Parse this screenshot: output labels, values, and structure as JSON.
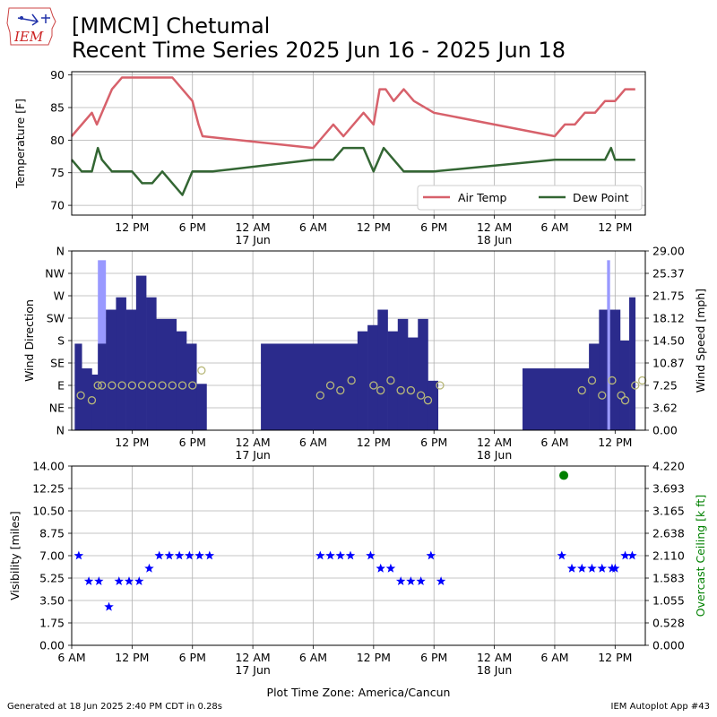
{
  "header": {
    "logo_text": "IEM",
    "title_line1": "[MMCM] Chetumal",
    "title_line2": "Recent Time Series 2025 Jun 16 - 2025 Jun 18"
  },
  "footer": {
    "left": "Generated at 18 Jun 2025 2:40 PM CDT in 0.28s",
    "right": "IEM Autoplot App #43"
  },
  "colors": {
    "air_temp": "#d7616b",
    "dew_point": "#336633",
    "wind_bar": "#2b2b8c",
    "gust_bar": "#9999ff",
    "wind_dir_marker": "#b8b87a",
    "visibility": "#0000ff",
    "ceiling": "#008000",
    "grid": "#b0b0b0"
  },
  "chart_data": [
    {
      "type": "line",
      "name": "temperature",
      "ylabel": "Temperature [F]",
      "ylim": [
        68.5,
        90.5
      ],
      "yticks": [
        70,
        75,
        80,
        85,
        90
      ],
      "xticks": [
        {
          "h": 12,
          "label": "12 PM"
        },
        {
          "h": 18,
          "label": "6 PM"
        },
        {
          "h": 24,
          "label": "12 AM",
          "sub": "17 Jun"
        },
        {
          "h": 30,
          "label": "6 AM"
        },
        {
          "h": 36,
          "label": "12 PM"
        },
        {
          "h": 42,
          "label": "6 PM"
        },
        {
          "h": 48,
          "label": "12 AM",
          "sub": "18 Jun"
        },
        {
          "h": 54,
          "label": "6 AM"
        },
        {
          "h": 60,
          "label": "12 PM"
        }
      ],
      "legend": {
        "position": "lower-right",
        "entries": [
          "Air Temp",
          "Dew Point"
        ]
      },
      "series": [
        {
          "name": "Air Temp",
          "x": [
            6,
            8,
            8.5,
            9,
            10,
            11,
            14,
            16,
            18,
            18.6,
            19,
            30,
            31,
            32,
            33,
            35,
            36,
            36.6,
            37.2,
            38,
            39,
            40,
            42,
            54,
            55,
            56,
            57,
            58,
            59,
            59.6,
            60,
            61,
            62
          ],
          "y": [
            80.6,
            84.2,
            82.4,
            84.2,
            87.8,
            89.6,
            89.6,
            89.6,
            86,
            82.4,
            80.6,
            78.8,
            80.6,
            82.4,
            80.6,
            84.2,
            82.4,
            87.8,
            87.8,
            86,
            87.8,
            86,
            84.2,
            80.6,
            82.4,
            82.4,
            84.2,
            84.2,
            86,
            86,
            86,
            87.8,
            87.8
          ]
        },
        {
          "name": "Dew Point",
          "x": [
            6,
            7,
            8,
            8.6,
            9,
            10,
            11,
            12,
            13,
            14,
            15,
            16,
            17,
            18,
            19,
            20,
            30,
            32,
            33,
            35,
            36,
            37,
            38,
            39,
            40,
            42,
            54,
            55,
            56,
            57,
            58,
            59,
            59.6,
            60,
            61,
            62
          ],
          "y": [
            77,
            75.2,
            75.2,
            78.8,
            77,
            75.2,
            75.2,
            75.2,
            73.4,
            73.4,
            75.2,
            73.4,
            71.6,
            75.2,
            75.2,
            75.2,
            77,
            77,
            78.8,
            78.8,
            75.2,
            78.8,
            77,
            75.2,
            75.2,
            75.2,
            77,
            77,
            77,
            77,
            77,
            77,
            78.8,
            77,
            77,
            77
          ]
        }
      ]
    },
    {
      "type": "bar",
      "name": "wind",
      "ylabel": "Wind Direction",
      "y2label": "Wind Speed [mph]",
      "ylim_dir": [
        0,
        360
      ],
      "dir_ticks": [
        "N",
        "NE",
        "E",
        "SE",
        "S",
        "SW",
        "W",
        "NW",
        "N"
      ],
      "ylim_speed": [
        0,
        29
      ],
      "speed_ticks": [
        "0.00",
        "3.62",
        "7.25",
        "10.87",
        "14.50",
        "18.12",
        "21.75",
        "25.37",
        "29.00"
      ],
      "xticks": [
        {
          "h": 12,
          "label": "12 PM"
        },
        {
          "h": 18,
          "label": "6 PM"
        },
        {
          "h": 24,
          "label": "12 AM",
          "sub": "17 Jun"
        },
        {
          "h": 30,
          "label": "6 AM"
        },
        {
          "h": 36,
          "label": "12 PM"
        },
        {
          "h": 42,
          "label": "6 PM"
        },
        {
          "h": 48,
          "label": "12 AM",
          "sub": "18 Jun"
        },
        {
          "h": 54,
          "label": "6 AM"
        },
        {
          "h": 60,
          "label": "12 PM"
        }
      ],
      "speed": [
        {
          "x0": 6.3,
          "x1": 7.0,
          "v": 14.0
        },
        {
          "x0": 7.0,
          "x1": 8.0,
          "v": 10.0
        },
        {
          "x0": 8.0,
          "x1": 8.6,
          "v": 9.0
        },
        {
          "x0": 8.6,
          "x1": 9.4,
          "v": 14.0
        },
        {
          "x0": 9.4,
          "x1": 10.4,
          "v": 19.5
        },
        {
          "x0": 10.4,
          "x1": 11.4,
          "v": 21.5
        },
        {
          "x0": 11.4,
          "x1": 12.4,
          "v": 19.5
        },
        {
          "x0": 12.4,
          "x1": 13.4,
          "v": 25.0
        },
        {
          "x0": 13.4,
          "x1": 14.4,
          "v": 21.5
        },
        {
          "x0": 14.4,
          "x1": 16.4,
          "v": 18.0
        },
        {
          "x0": 16.4,
          "x1": 17.4,
          "v": 16.0
        },
        {
          "x0": 17.4,
          "x1": 18.4,
          "v": 14.0
        },
        {
          "x0": 18.4,
          "x1": 19.4,
          "v": 7.5
        },
        {
          "x0": 24.8,
          "x1": 34.4,
          "v": 14.0
        },
        {
          "x0": 34.4,
          "x1": 35.4,
          "v": 16.0
        },
        {
          "x0": 35.4,
          "x1": 36.4,
          "v": 17.0
        },
        {
          "x0": 36.4,
          "x1": 37.4,
          "v": 19.5
        },
        {
          "x0": 37.4,
          "x1": 38.4,
          "v": 16.0
        },
        {
          "x0": 38.4,
          "x1": 39.4,
          "v": 18.0
        },
        {
          "x0": 39.4,
          "x1": 40.4,
          "v": 15.0
        },
        {
          "x0": 40.4,
          "x1": 41.4,
          "v": 18.0
        },
        {
          "x0": 41.4,
          "x1": 42.4,
          "v": 8.0
        },
        {
          "x0": 50.8,
          "x1": 57.4,
          "v": 10.0
        },
        {
          "x0": 57.4,
          "x1": 58.4,
          "v": 14.0
        },
        {
          "x0": 58.4,
          "x1": 59.2,
          "v": 19.5
        },
        {
          "x0": 59.5,
          "x1": 60.5,
          "v": 19.5
        },
        {
          "x0": 60.5,
          "x1": 61.4,
          "v": 14.5
        },
        {
          "x0": 61.4,
          "x1": 62.0,
          "v": 21.5
        }
      ],
      "gust": [
        {
          "x0": 8.6,
          "x1": 9.4,
          "v": 27.5
        },
        {
          "x0": 59.2,
          "x1": 59.5,
          "v": 27.5
        }
      ],
      "direction": {
        "x": [
          6.9,
          8.0,
          8.6,
          9.0,
          10.0,
          11.0,
          12.0,
          13.0,
          14.0,
          15.0,
          16.0,
          17.0,
          18.0,
          18.9,
          30.7,
          31.7,
          32.7,
          33.8,
          36.0,
          36.7,
          37.7,
          38.7,
          39.7,
          40.7,
          41.4,
          42.6,
          56.7,
          57.7,
          58.7,
          59.7,
          60.6,
          61.0,
          62.0,
          62.7
        ],
        "y": [
          70,
          60,
          90,
          90,
          90,
          90,
          90,
          90,
          90,
          90,
          90,
          90,
          90,
          120,
          70,
          90,
          80,
          100,
          90,
          80,
          100,
          80,
          80,
          70,
          60,
          90,
          80,
          100,
          70,
          100,
          70,
          60,
          90,
          100
        ]
      }
    },
    {
      "type": "scatter",
      "name": "visibility_ceiling",
      "ylabel": "Visibility [miles]",
      "y2label": "Overcast Ceiling [k ft]",
      "xlabel": "Plot Time Zone: America/Cancun",
      "ylim": [
        0,
        14
      ],
      "yticks": [
        "0.00",
        "1.75",
        "3.50",
        "5.25",
        "7.00",
        "8.75",
        "10.50",
        "12.25",
        "14.00"
      ],
      "y2lim": [
        0,
        4.22
      ],
      "y2ticks": [
        "0.000",
        "0.528",
        "1.055",
        "1.583",
        "2.110",
        "2.638",
        "3.165",
        "3.693",
        "4.220"
      ],
      "xticks": [
        {
          "h": 6,
          "label": "6 AM"
        },
        {
          "h": 12,
          "label": "12 PM"
        },
        {
          "h": 18,
          "label": "6 PM"
        },
        {
          "h": 24,
          "label": "12 AM",
          "sub": "17 Jun"
        },
        {
          "h": 30,
          "label": "6 AM"
        },
        {
          "h": 36,
          "label": "12 PM"
        },
        {
          "h": 42,
          "label": "6 PM"
        },
        {
          "h": 48,
          "label": "12 AM",
          "sub": "18 Jun"
        },
        {
          "h": 54,
          "label": "6 AM"
        },
        {
          "h": 60,
          "label": "12 PM"
        }
      ],
      "visibility": {
        "x": [
          6.7,
          7.7,
          8.7,
          9.7,
          10.7,
          11.7,
          12.7,
          13.7,
          14.7,
          15.7,
          16.7,
          17.7,
          18.7,
          19.7,
          30.7,
          31.7,
          32.7,
          33.7,
          35.7,
          36.7,
          37.7,
          38.7,
          39.7,
          40.7,
          41.7,
          42.7,
          54.7,
          55.7,
          56.7,
          57.7,
          58.7,
          59.7,
          60.0,
          61.0,
          61.7
        ],
        "y": [
          7,
          5,
          5,
          3,
          5,
          5,
          5,
          6,
          7,
          7,
          7,
          7,
          7,
          7,
          7,
          7,
          7,
          7,
          7,
          6,
          6,
          5,
          5,
          5,
          7,
          5,
          7,
          6,
          6,
          6,
          6,
          6,
          6,
          7,
          7
        ]
      },
      "ceiling": {
        "x": [
          54.9
        ],
        "y": [
          4.0
        ]
      }
    }
  ]
}
